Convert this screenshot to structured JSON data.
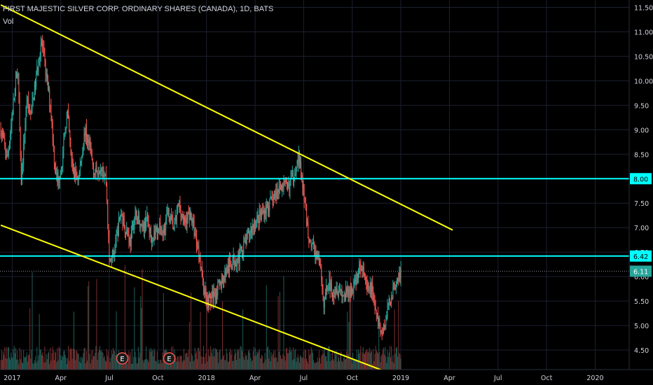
{
  "header": {
    "title": "FIRST MAJESTIC SILVER CORP. ORDINARY SHARES (CANADA), 1D, BATS",
    "volume_label": "Vol"
  },
  "chart_data": {
    "type": "candlestick",
    "ylim": [
      4.1,
      11.65
    ],
    "y_ticks": [
      4.5,
      5.0,
      5.5,
      6.0,
      6.5,
      7.0,
      7.5,
      8.0,
      8.5,
      9.0,
      9.5,
      10.0,
      10.5,
      11.0,
      11.5
    ],
    "y_tick_labels": [
      "4.50",
      "5.00",
      "5.50",
      "6.00",
      "6.50",
      "7.00",
      "7.50",
      "8.00",
      "8.50",
      "9.00",
      "9.50",
      "10.00",
      "10.50",
      "11.00",
      "11.50"
    ],
    "x_tick_labels": [
      "2017",
      "Apr",
      "Jul",
      "Oct",
      "2018",
      "Apr",
      "Jul",
      "Oct",
      "2019",
      "Apr",
      "Jul",
      "Oct",
      "2020"
    ],
    "x_tick_months": [
      0,
      3,
      6,
      9,
      12,
      15,
      18,
      21,
      24,
      27,
      30,
      33,
      36
    ],
    "x_range_months": [
      -0.75,
      38.1
    ],
    "price_anchors": [
      [
        -0.7,
        9.0
      ],
      [
        -0.3,
        8.4
      ],
      [
        0.0,
        9.3
      ],
      [
        0.35,
        10.3
      ],
      [
        0.55,
        7.9
      ],
      [
        0.7,
        8.6
      ],
      [
        0.9,
        9.6
      ],
      [
        1.15,
        9.3
      ],
      [
        1.5,
        10.1
      ],
      [
        1.8,
        10.85
      ],
      [
        2.1,
        10.1
      ],
      [
        2.4,
        9.4
      ],
      [
        2.6,
        8.4
      ],
      [
        2.8,
        7.9
      ],
      [
        3.1,
        8.4
      ],
      [
        3.4,
        9.4
      ],
      [
        3.7,
        8.2
      ],
      [
        4.1,
        8.0
      ],
      [
        4.5,
        9.0
      ],
      [
        4.8,
        8.6
      ],
      [
        5.1,
        8.1
      ],
      [
        5.5,
        8.3
      ],
      [
        5.8,
        8.0
      ],
      [
        6.0,
        6.3
      ],
      [
        6.3,
        6.5
      ],
      [
        6.7,
        7.3
      ],
      [
        7.0,
        7.0
      ],
      [
        7.3,
        6.7
      ],
      [
        7.6,
        7.3
      ],
      [
        8.0,
        6.9
      ],
      [
        8.3,
        7.2
      ],
      [
        8.6,
        6.8
      ],
      [
        9.0,
        7.0
      ],
      [
        9.3,
        6.9
      ],
      [
        9.6,
        7.3
      ],
      [
        10.0,
        7.0
      ],
      [
        10.3,
        7.5
      ],
      [
        10.6,
        7.1
      ],
      [
        11.0,
        7.3
      ],
      [
        11.2,
        7.0
      ],
      [
        11.6,
        6.4
      ],
      [
        11.8,
        5.8
      ],
      [
        12.1,
        5.5
      ],
      [
        12.4,
        5.6
      ],
      [
        12.8,
        5.8
      ],
      [
        13.2,
        6.1
      ],
      [
        13.6,
        6.3
      ],
      [
        14.0,
        6.4
      ],
      [
        14.4,
        6.7
      ],
      [
        14.8,
        7.0
      ],
      [
        15.2,
        7.2
      ],
      [
        15.7,
        7.4
      ],
      [
        16.2,
        7.6
      ],
      [
        16.6,
        7.9
      ],
      [
        17.0,
        7.8
      ],
      [
        17.4,
        8.1
      ],
      [
        17.7,
        8.45
      ],
      [
        18.0,
        7.7
      ],
      [
        18.3,
        6.8
      ],
      [
        18.7,
        6.5
      ],
      [
        19.0,
        6.3
      ],
      [
        19.2,
        5.4
      ],
      [
        19.5,
        5.9
      ],
      [
        19.8,
        5.7
      ],
      [
        20.1,
        5.8
      ],
      [
        20.5,
        5.6
      ],
      [
        20.9,
        5.7
      ],
      [
        21.3,
        6.0
      ],
      [
        21.6,
        6.3
      ],
      [
        21.9,
        5.7
      ],
      [
        22.2,
        5.8
      ],
      [
        22.5,
        5.2
      ],
      [
        22.8,
        4.85
      ],
      [
        23.0,
        5.0
      ],
      [
        23.3,
        5.5
      ],
      [
        23.6,
        5.8
      ],
      [
        23.8,
        6.0
      ],
      [
        24.0,
        6.1
      ]
    ],
    "horizontal_levels": [
      {
        "value": 8.0,
        "label": "8.00",
        "color": "#00ffff"
      },
      {
        "value": 6.42,
        "label": "6.42",
        "color": "#00ffff"
      }
    ],
    "trend_lines": [
      {
        "from": [
          -0.7,
          11.55
        ],
        "to": [
          27.2,
          6.95
        ],
        "color": "#ffff00"
      },
      {
        "from": [
          -0.7,
          7.05
        ],
        "to": [
          23.3,
          4.03
        ],
        "color": "#ffff00"
      }
    ],
    "last_price": {
      "value": 6.11,
      "label": "6.11",
      "color": "#26a69a"
    },
    "earnings_markers": [
      {
        "month": 6.8,
        "label": "E"
      },
      {
        "month": 9.7,
        "label": "E"
      }
    ],
    "colors": {
      "up": "#26a69a",
      "down": "#ef5350",
      "vol_up": "#1f5d57",
      "vol_down": "#7a2e2e",
      "grid": "#1c2030",
      "text": "#d1d4dc",
      "background": "#000000"
    }
  }
}
